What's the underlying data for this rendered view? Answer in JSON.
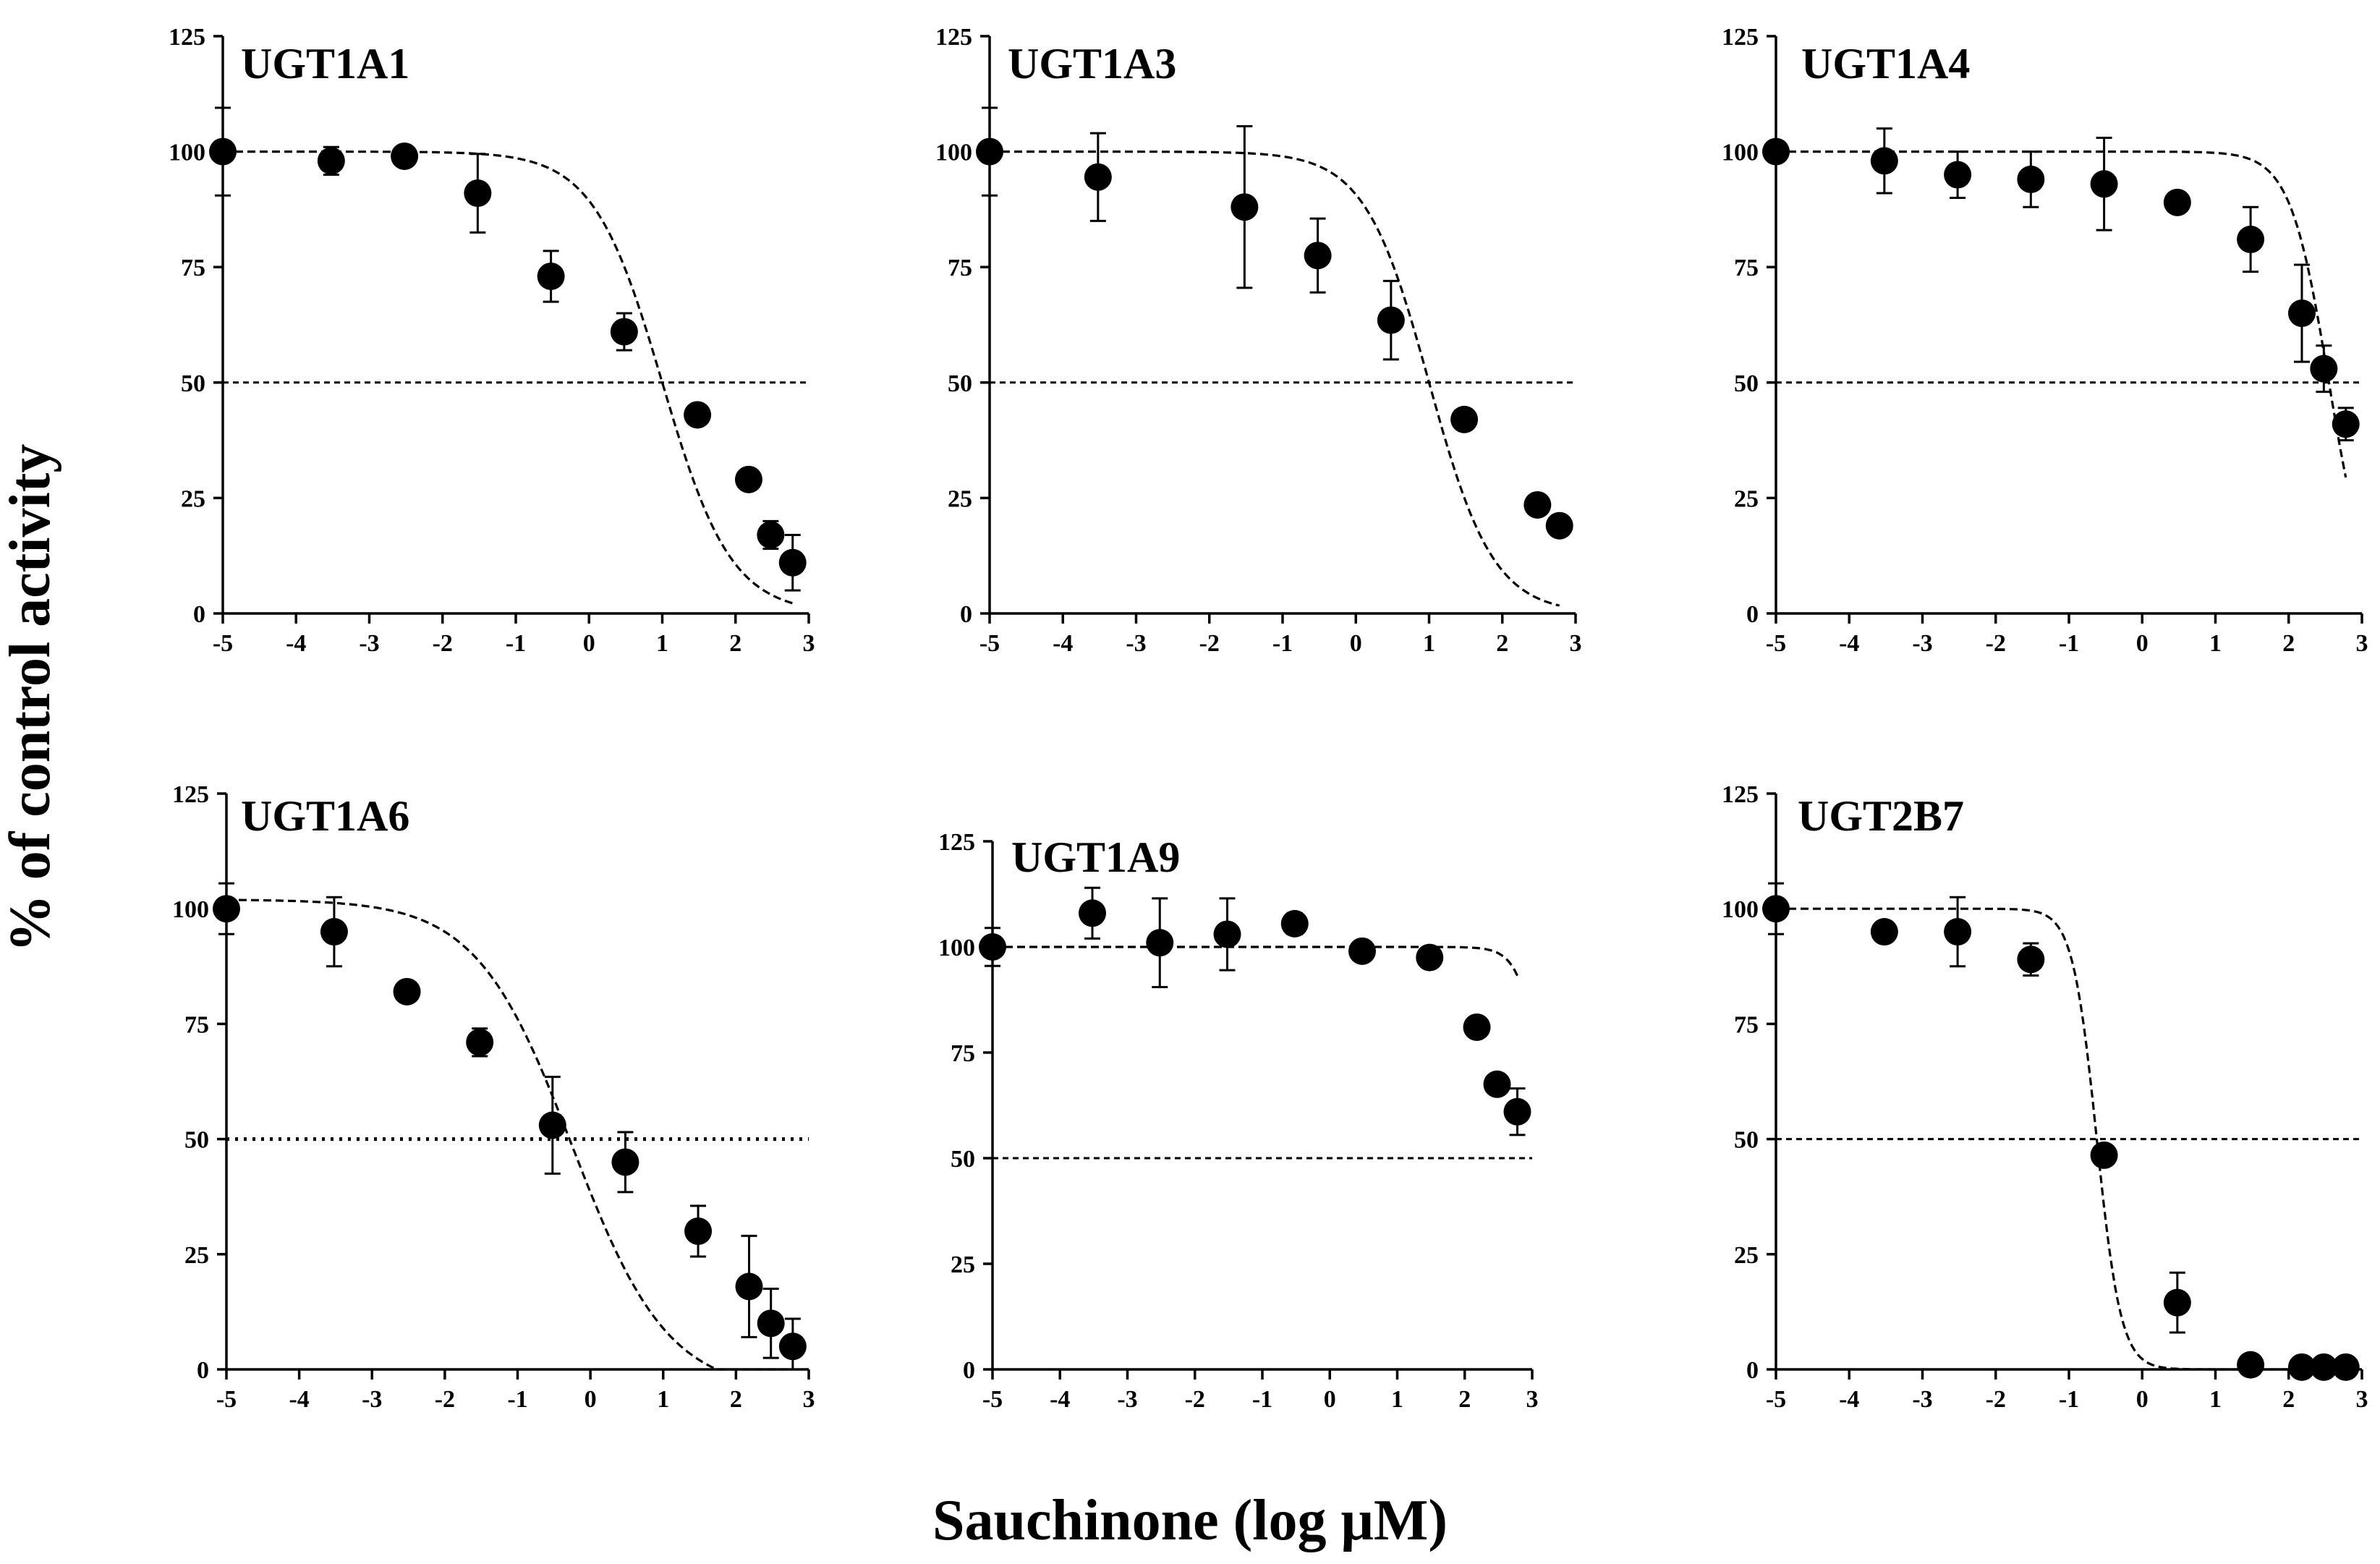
{
  "figure": {
    "ylabel": "% of control activity",
    "xlabel": "Sauchinone (log  μM)"
  },
  "chart_data": [
    {
      "type": "scatter",
      "title": "UGT1A1",
      "xlim": [
        -5,
        3
      ],
      "ylim": [
        0,
        125
      ],
      "xticks": [
        "-5",
        "-4",
        "-3",
        "-2",
        "-1",
        "0",
        "1",
        "2",
        "3"
      ],
      "yticks": [
        "0",
        "25",
        "50",
        "75",
        "100",
        "125"
      ],
      "reference_line": 50,
      "fit": {
        "bottom": 0,
        "top": 100,
        "log_ic50": 1.0,
        "hill": 0.42
      },
      "x": [
        -5,
        -3.52,
        -2.52,
        -1.52,
        -0.52,
        0.48,
        1.48,
        2.18,
        2.48,
        2.78
      ],
      "y": [
        100,
        98,
        99,
        91,
        73,
        61,
        43,
        29,
        17,
        11
      ],
      "err": [
        9.5,
        3,
        0,
        8.5,
        5.5,
        4,
        0,
        0,
        3,
        6
      ]
    },
    {
      "type": "scatter",
      "title": "UGT1A3",
      "xlim": [
        -5,
        3
      ],
      "ylim": [
        0,
        125
      ],
      "xticks": [
        "-5",
        "-4",
        "-3",
        "-2",
        "-1",
        "0",
        "1",
        "2",
        "3"
      ],
      "yticks": [
        "0",
        "25",
        "50",
        "75",
        "100",
        "125"
      ],
      "reference_line": 50,
      "fit": {
        "bottom": 0,
        "top": 100,
        "log_ic50": 1.0,
        "hill": 0.45
      },
      "x": [
        -5,
        -3.52,
        -1.52,
        -0.52,
        0.48,
        1.48,
        2.48,
        2.78
      ],
      "y": [
        100,
        94.5,
        88,
        77.5,
        63.5,
        42,
        23.5,
        19
      ],
      "err": [
        9.5,
        9.5,
        17.5,
        8,
        8.5,
        0,
        0,
        0
      ]
    },
    {
      "type": "scatter",
      "title": "UGT1A4",
      "xlim": [
        -5,
        3
      ],
      "ylim": [
        0,
        125
      ],
      "xticks": [
        "-5",
        "-4",
        "-3",
        "-2",
        "-1",
        "0",
        "1",
        "2",
        "3"
      ],
      "yticks": [
        "0",
        "25",
        "50",
        "75",
        "100",
        "125"
      ],
      "reference_line": 50,
      "fit": {
        "bottom": 0,
        "top": 100,
        "log_ic50": 2.55,
        "hill": 0.75
      },
      "x": [
        -5,
        -3.52,
        -2.52,
        -1.52,
        -0.52,
        0.48,
        1.48,
        2.18,
        2.48,
        2.78
      ],
      "y": [
        100,
        98,
        95,
        94,
        93,
        89,
        81,
        65,
        53,
        41
      ],
      "err": [
        0,
        7,
        5,
        6,
        10,
        0,
        7,
        10.5,
        5,
        3.5
      ]
    },
    {
      "type": "scatter",
      "title": "UGT1A6",
      "xlim": [
        -5,
        3
      ],
      "ylim": [
        0,
        125
      ],
      "xticks": [
        "-5",
        "-4",
        "-3",
        "-2",
        "-1",
        "0",
        "1",
        "2",
        "3"
      ],
      "yticks": [
        "0",
        "25",
        "50",
        "75",
        "100",
        "125"
      ],
      "reference_line": 50,
      "fit": {
        "bottom": -5,
        "top": 102,
        "log_ic50": -0.25,
        "hill": 0.3
      },
      "x": [
        -5,
        -3.52,
        -2.52,
        -1.52,
        -0.52,
        0.48,
        1.48,
        2.18,
        2.48,
        2.78
      ],
      "y": [
        100,
        95,
        82,
        71,
        53,
        45,
        30,
        18,
        10,
        5
      ],
      "err": [
        5.5,
        7.5,
        0,
        3,
        10.5,
        6.5,
        5.5,
        11,
        7.5,
        6
      ]
    },
    {
      "type": "scatter",
      "title": "UGT1A9",
      "xlim": [
        -5,
        3
      ],
      "ylim": [
        0,
        125
      ],
      "xticks": [
        "-5",
        "-4",
        "-3",
        "-2",
        "-1",
        "0",
        "1",
        "2",
        "3"
      ],
      "yticks": [
        "0",
        "25",
        "50",
        "75",
        "100",
        "125"
      ],
      "reference_line": 50,
      "fit": {
        "bottom": 0,
        "top": 100,
        "log_ic50": 3.25,
        "hill": 1.1
      },
      "x": [
        -5,
        -3.52,
        -2.52,
        -1.52,
        -0.52,
        0.48,
        1.48,
        2.18,
        2.48,
        2.78
      ],
      "y": [
        100,
        108,
        101,
        103,
        105.5,
        99,
        97.5,
        81,
        67.5,
        61
      ],
      "err": [
        4.5,
        6,
        10.5,
        8.5,
        2.5,
        0,
        0,
        0,
        0,
        5.5
      ]
    },
    {
      "type": "scatter",
      "title": "UGT2B7",
      "xlim": [
        -5,
        3
      ],
      "ylim": [
        0,
        125
      ],
      "xticks": [
        "-5",
        "-4",
        "-3",
        "-2",
        "-1",
        "0",
        "1",
        "2",
        "3"
      ],
      "yticks": [
        "0",
        "25",
        "50",
        "75",
        "100",
        "125"
      ],
      "reference_line": 50,
      "fit": {
        "bottom": 0,
        "top": 100,
        "log_ic50": -0.62,
        "hill": 1.2
      },
      "x": [
        -5,
        -3.52,
        -2.52,
        -1.52,
        -0.52,
        0.48,
        1.48,
        2.18,
        2.48,
        2.78
      ],
      "y": [
        100,
        95,
        95,
        89,
        46.5,
        14.5,
        1,
        0.5,
        0.5,
        0.5
      ],
      "err": [
        5.5,
        0,
        7.5,
        3.5,
        0,
        6.5,
        0,
        0,
        0,
        0
      ]
    }
  ]
}
